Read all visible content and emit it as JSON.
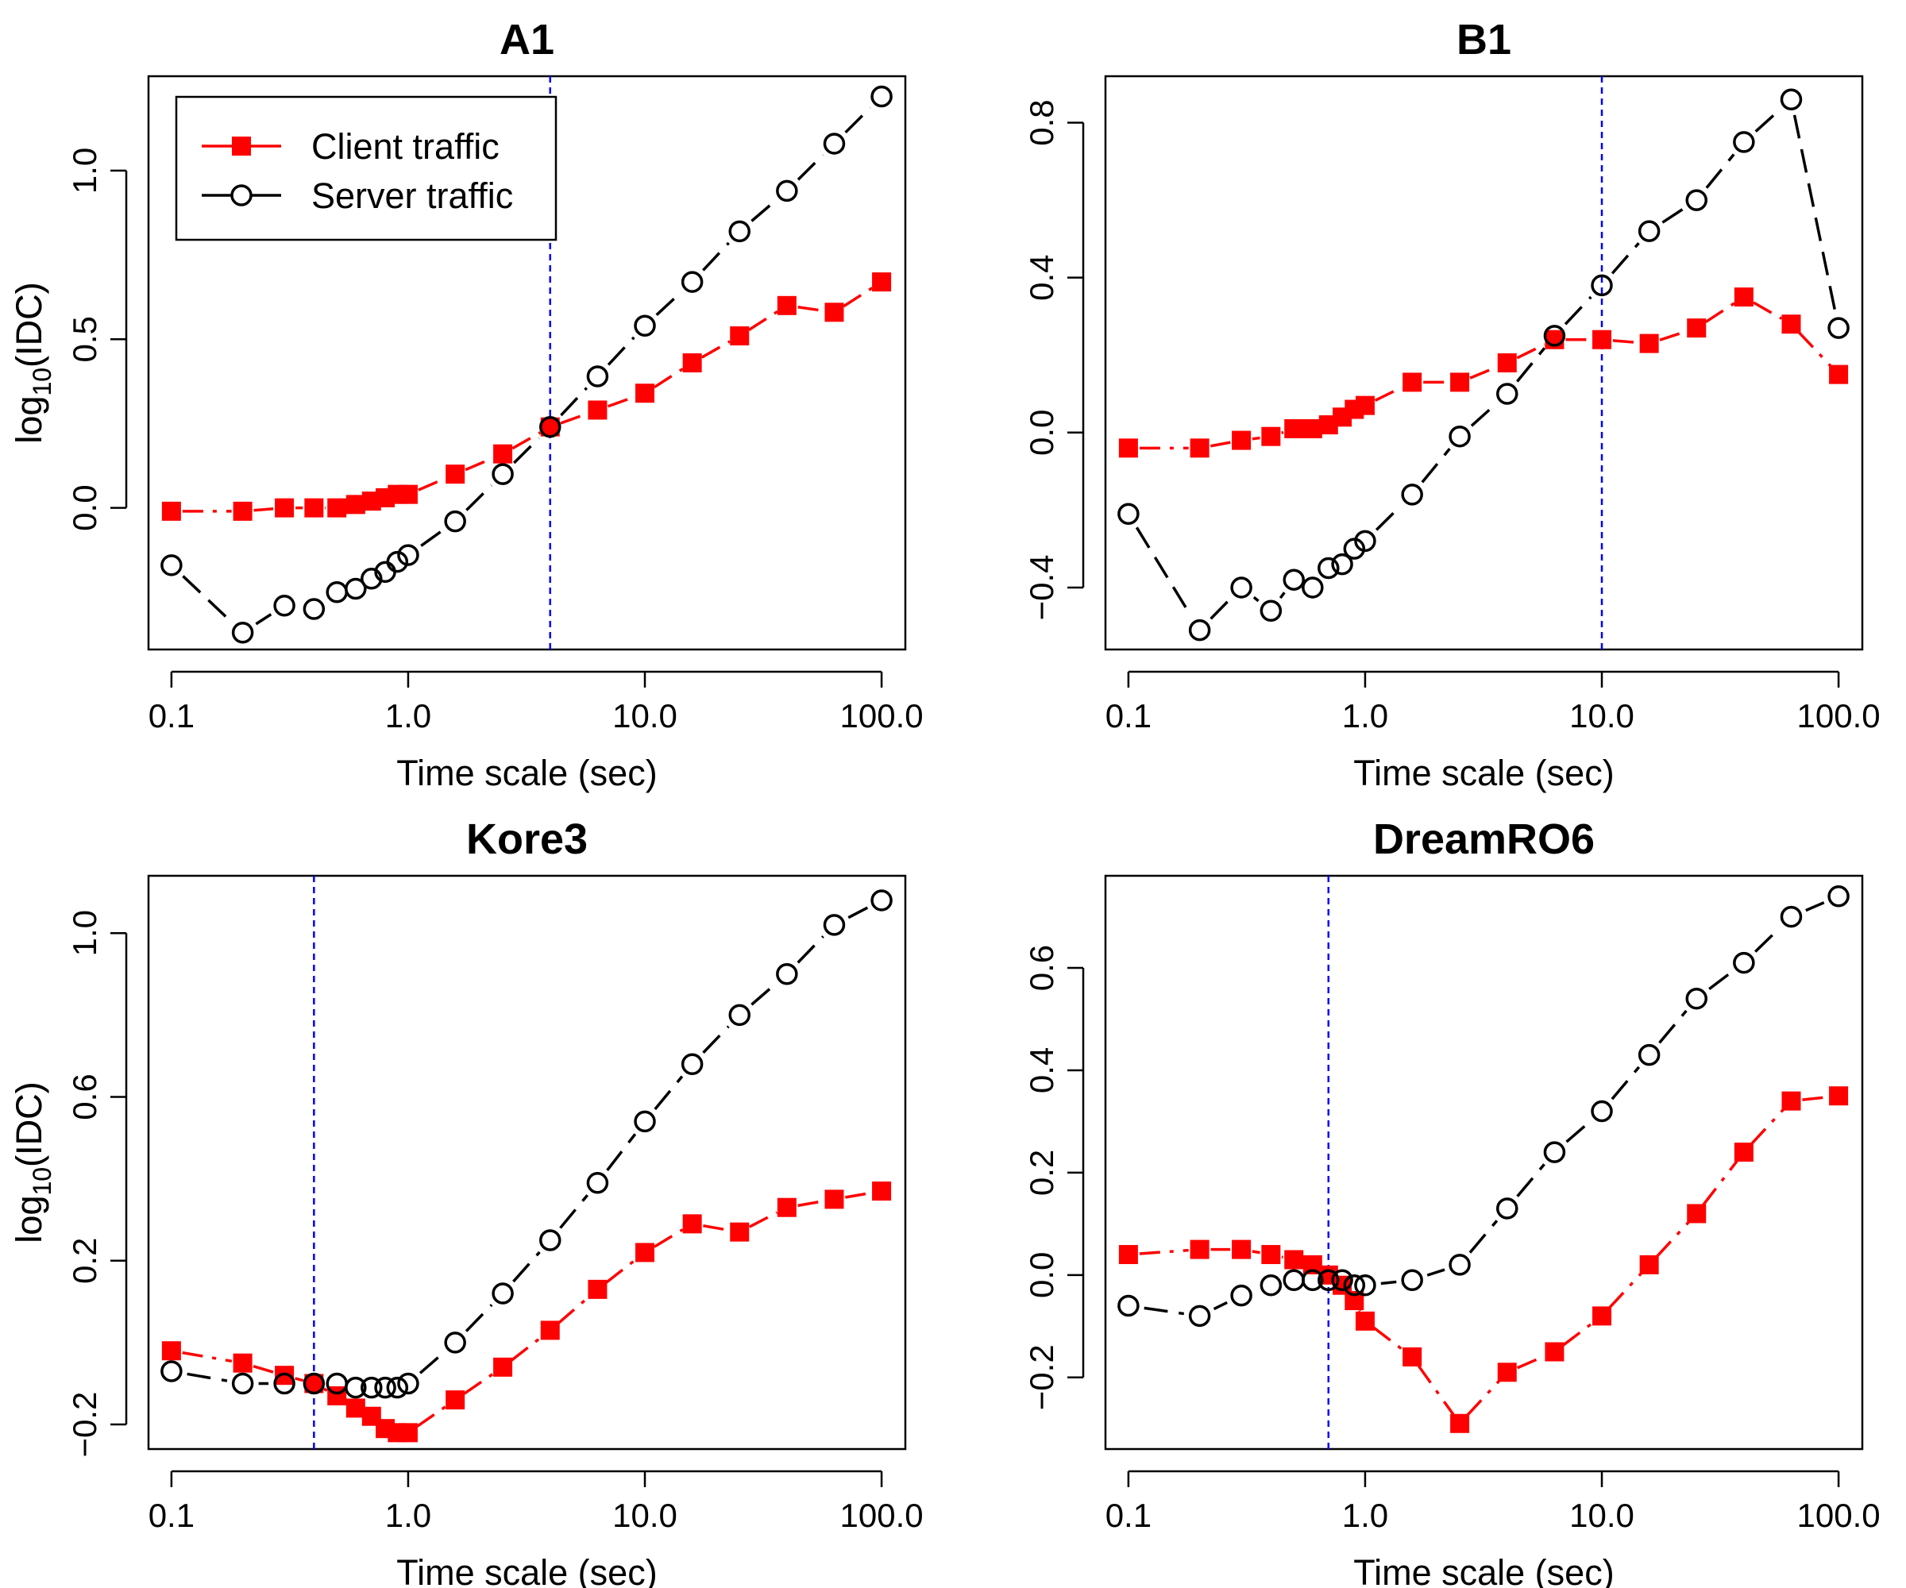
{
  "legend": {
    "client_label": "Client traffic",
    "server_label": "Server traffic"
  },
  "colors": {
    "client": "#ff0000",
    "server": "#000000",
    "vline": "#0000ff"
  },
  "x": [
    0.1,
    0.2,
    0.3,
    0.4,
    0.5,
    0.6,
    0.7,
    0.8,
    0.9,
    1.0,
    1.58,
    2.51,
    3.98,
    6.31,
    10,
    15.85,
    25.12,
    39.81,
    63.1,
    100
  ],
  "chart_data": [
    {
      "type": "line",
      "title": "A1",
      "xlabel": "Time scale (sec)",
      "ylabel_base": "log",
      "ylabel_sub": "10",
      "ylabel_rest": "(IDC)",
      "xscale": "log",
      "xlim": [
        0.08,
        126
      ],
      "ylim": [
        -0.42,
        1.28
      ],
      "xticks": [
        0.1,
        1,
        10,
        100
      ],
      "xtick_labels": [
        "0.1",
        "1.0",
        "10.0",
        "100.0"
      ],
      "yticks": [
        0.0,
        0.5,
        1.0
      ],
      "ytick_labels": [
        "0.0",
        "0.5",
        "1.0"
      ],
      "vline": 3.98,
      "legend_position": "top-left",
      "series": [
        {
          "name": "Client traffic",
          "values": [
            -0.01,
            -0.01,
            0.0,
            0.0,
            0.0,
            0.01,
            0.02,
            0.03,
            0.04,
            0.04,
            0.1,
            0.16,
            0.24,
            0.29,
            0.34,
            0.43,
            0.51,
            0.6,
            0.58,
            0.67
          ]
        },
        {
          "name": "Server traffic",
          "values": [
            -0.17,
            -0.37,
            -0.29,
            -0.3,
            -0.25,
            -0.24,
            -0.21,
            -0.19,
            -0.16,
            -0.14,
            -0.04,
            0.1,
            0.24,
            0.39,
            0.54,
            0.67,
            0.82,
            0.94,
            1.08,
            1.22
          ]
        }
      ]
    },
    {
      "type": "line",
      "title": "B1",
      "xlabel": "Time scale (sec)",
      "ylabel_base": "log",
      "ylabel_sub": "10",
      "ylabel_rest": "(IDC)",
      "xscale": "log",
      "xlim": [
        0.08,
        126
      ],
      "ylim": [
        -0.56,
        0.92
      ],
      "xticks": [
        0.1,
        1,
        10,
        100
      ],
      "xtick_labels": [
        "0.1",
        "1.0",
        "10.0",
        "100.0"
      ],
      "yticks": [
        -0.4,
        0.0,
        0.4,
        0.8
      ],
      "ytick_labels": [
        "−0.4",
        "0.0",
        "0.4",
        "0.8"
      ],
      "vline": 10,
      "series": [
        {
          "name": "Client traffic",
          "values": [
            -0.04,
            -0.04,
            -0.02,
            -0.01,
            0.01,
            0.01,
            0.02,
            0.04,
            0.06,
            0.07,
            0.13,
            0.13,
            0.18,
            0.24,
            0.24,
            0.23,
            0.27,
            0.35,
            0.28,
            0.15
          ]
        },
        {
          "name": "Server traffic",
          "values": [
            -0.21,
            -0.51,
            -0.4,
            -0.46,
            -0.38,
            -0.4,
            -0.35,
            -0.34,
            -0.3,
            -0.28,
            -0.16,
            -0.01,
            0.1,
            0.25,
            0.38,
            0.52,
            0.6,
            0.75,
            0.86,
            0.27
          ]
        }
      ]
    },
    {
      "type": "line",
      "title": "Kore3",
      "xlabel": "Time scale (sec)",
      "ylabel_base": "log",
      "ylabel_sub": "10",
      "ylabel_rest": "(IDC)",
      "xscale": "log",
      "xlim": [
        0.08,
        126
      ],
      "ylim": [
        -0.26,
        1.14
      ],
      "xticks": [
        0.1,
        1,
        10,
        100
      ],
      "xtick_labels": [
        "0.1",
        "1.0",
        "10.0",
        "100.0"
      ],
      "yticks": [
        -0.2,
        0.2,
        0.6,
        1.0
      ],
      "ytick_labels": [
        "−0.2",
        "0.2",
        "0.6",
        "1.0"
      ],
      "vline": 0.4,
      "series": [
        {
          "name": "Client traffic",
          "values": [
            -0.02,
            -0.05,
            -0.08,
            -0.1,
            -0.13,
            -0.16,
            -0.18,
            -0.21,
            -0.22,
            -0.22,
            -0.14,
            -0.06,
            0.03,
            0.13,
            0.22,
            0.29,
            0.27,
            0.33,
            0.35,
            0.37
          ]
        },
        {
          "name": "Server traffic",
          "values": [
            -0.07,
            -0.1,
            -0.1,
            -0.1,
            -0.1,
            -0.11,
            -0.11,
            -0.11,
            -0.11,
            -0.1,
            0.0,
            0.12,
            0.25,
            0.39,
            0.54,
            0.68,
            0.8,
            0.9,
            1.02,
            1.08
          ]
        }
      ]
    },
    {
      "type": "line",
      "title": "DreamRO6",
      "xlabel": "Time scale (sec)",
      "ylabel_base": "log",
      "ylabel_sub": "10",
      "ylabel_rest": "(IDC)",
      "xscale": "log",
      "xlim": [
        0.08,
        126
      ],
      "ylim": [
        -0.34,
        0.78
      ],
      "xticks": [
        0.1,
        1,
        10,
        100
      ],
      "xtick_labels": [
        "0.1",
        "1.0",
        "10.0",
        "100.0"
      ],
      "yticks": [
        -0.2,
        0.0,
        0.2,
        0.4,
        0.6
      ],
      "ytick_labels": [
        "−0.2",
        "0.0",
        "0.2",
        "0.4",
        "0.6"
      ],
      "vline": 0.7,
      "series": [
        {
          "name": "Client traffic",
          "values": [
            0.04,
            0.05,
            0.05,
            0.04,
            0.03,
            0.02,
            0.0,
            -0.02,
            -0.05,
            -0.09,
            -0.16,
            -0.29,
            -0.19,
            -0.15,
            -0.08,
            0.02,
            0.12,
            0.24,
            0.34,
            0.35
          ]
        },
        {
          "name": "Server traffic",
          "values": [
            -0.06,
            -0.08,
            -0.04,
            -0.02,
            -0.01,
            -0.01,
            -0.01,
            -0.01,
            -0.02,
            -0.02,
            -0.01,
            0.02,
            0.13,
            0.24,
            0.32,
            0.43,
            0.54,
            0.61,
            0.7,
            0.74
          ]
        }
      ]
    }
  ]
}
